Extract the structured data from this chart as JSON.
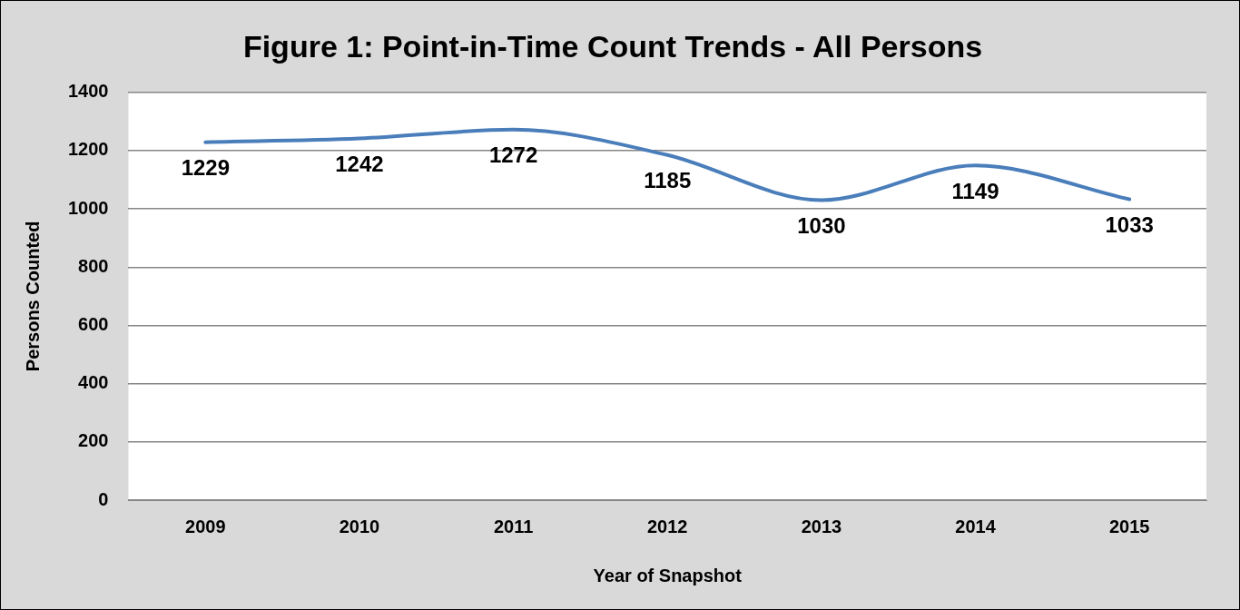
{
  "chart_data": {
    "type": "line",
    "title": "Figure 1: Point-in-Time Count Trends - All Persons",
    "xlabel": "Year of Snapshot",
    "ylabel": "Persons Counted",
    "categories": [
      "2009",
      "2010",
      "2011",
      "2012",
      "2013",
      "2014",
      "2015"
    ],
    "series": [
      {
        "color": "#4a7ebb",
        "values": [
          1229,
          1242,
          1272,
          1185,
          1030,
          1149,
          1033
        ]
      }
    ],
    "ylim": [
      0,
      1400
    ],
    "yticks": [
      0,
      200,
      400,
      600,
      800,
      1000,
      1200,
      1400
    ],
    "grid": "y",
    "legend": false,
    "data_labels": true
  }
}
